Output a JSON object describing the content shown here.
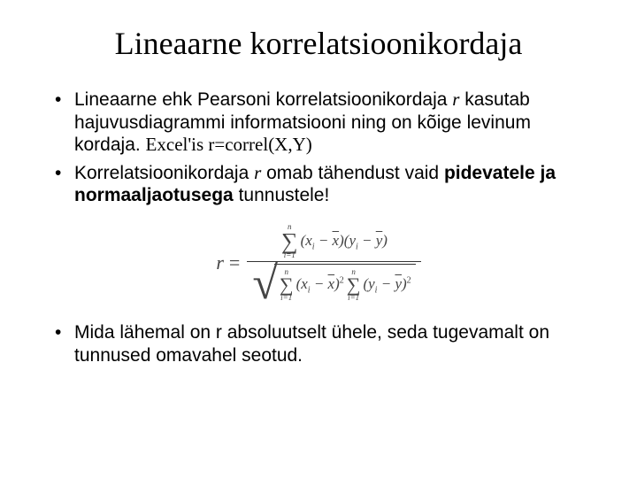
{
  "title": "Lineaarne korrelatsioonikordaja",
  "bullets": {
    "b1_pre": "Lineaarne ehk Pearsoni korrelatsioonikordaja ",
    "b1_r": "r",
    "b1_mid": " kasutab hajuvusdiagrammi informatsiooni ning on kõige levinum kordaja. ",
    "b1_excel": "Excel'is r=correl(X,Y)",
    "b2_pre": "Korrelatsioonikordaja ",
    "b2_r": "r",
    "b2_mid": " omab tähendust vaid ",
    "b2_bold": "pidevatele ja normaaljaotusega",
    "b2_end": " tunnustele!",
    "b3": "Mida lähemal on r absoluutselt ühele, seda tugevamalt on tunnused omavahel seotud."
  },
  "formula": {
    "r": "r",
    "eq": "=",
    "lim_top": "n",
    "lim_bot": "i=1",
    "sigma": "∑",
    "xi": "x",
    "yi": "y",
    "i": "i",
    "xbar": "x",
    "ybar": "y",
    "lp": "(",
    "rp": ")",
    "minus": " − ",
    "sq": "2",
    "radical": "√"
  }
}
